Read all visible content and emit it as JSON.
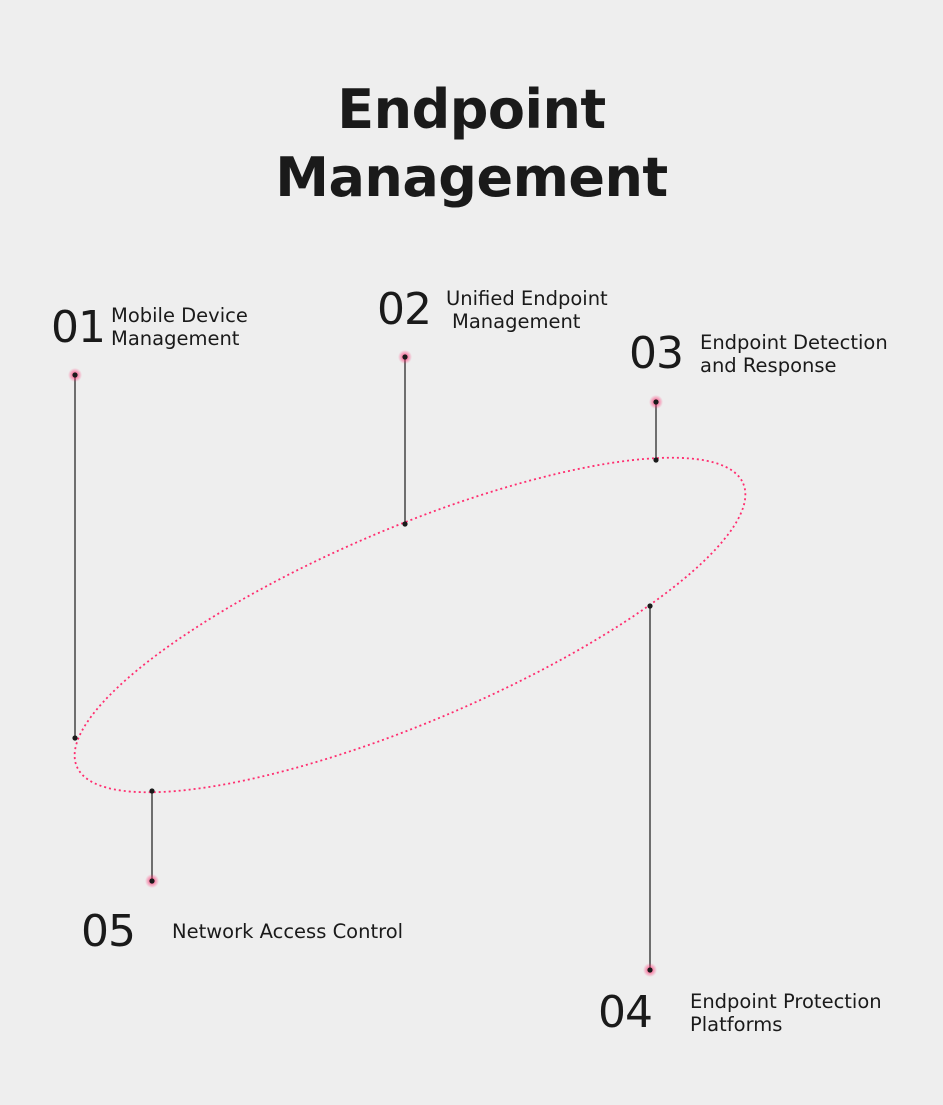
{
  "title_line1": "Endpoint",
  "title_line2": "Management",
  "colors": {
    "accent": "#ff2d6f",
    "line": "#1a1a1a",
    "background": "#eeeeee"
  },
  "items": [
    {
      "number": "01",
      "line1": "Mobile Device",
      "line2": "Management"
    },
    {
      "number": "02",
      "line1": "Unified Endpoint",
      "line2": "Management"
    },
    {
      "number": "03",
      "line1": "Endpoint Detection",
      "line2": "and Response"
    },
    {
      "number": "04",
      "line1": "Endpoint Protection",
      "line2": "Platforms"
    },
    {
      "number": "05",
      "line1": "Network Access Control",
      "line2": ""
    }
  ]
}
